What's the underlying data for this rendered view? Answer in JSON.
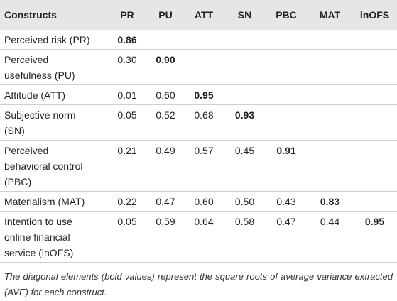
{
  "table": {
    "header": [
      "Constructs",
      "PR",
      "PU",
      "ATT",
      "SN",
      "PBC",
      "MAT",
      "lnOFS"
    ],
    "rows": [
      [
        "Perceived risk (PR)",
        "0.86"
      ],
      [
        "Perceived usefulness (PU)",
        "0.30",
        "0.90"
      ],
      [
        "Attitude (ATT)",
        "0.01",
        "0.60",
        "0.95"
      ],
      [
        "Subjective norm (SN)",
        "0.05",
        "0.52",
        "0.68",
        "0.93"
      ],
      [
        "Perceived behavioral control (PBC)",
        "0.21",
        "0.49",
        "0.57",
        "0.45",
        "0.91"
      ],
      [
        "Materialism (MAT)",
        "0.22",
        "0.47",
        "0.60",
        "0.50",
        "0.43",
        "0.83"
      ],
      [
        "Intention to use online financial service (lnOFS)",
        "0.05",
        "0.59",
        "0.64",
        "0.58",
        "0.47",
        "0.44",
        "0.95"
      ]
    ]
  },
  "footnote": "The diagonal elements (bold values) represent the square roots of average variance extracted (AVE) for each construct."
}
